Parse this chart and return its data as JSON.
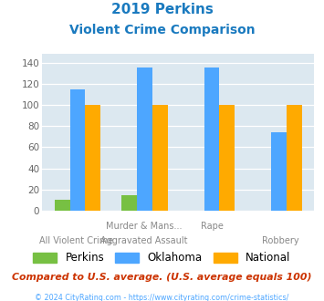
{
  "title_line1": "2019 Perkins",
  "title_line2": "Violent Crime Comparison",
  "title_color": "#1a7abf",
  "perkins": [
    10,
    15,
    0,
    0
  ],
  "oklahoma": [
    115,
    135,
    135,
    74
  ],
  "national": [
    100,
    100,
    100,
    100
  ],
  "perkins_color": "#77c043",
  "oklahoma_color": "#4da6ff",
  "national_color": "#ffaa00",
  "ylim": [
    0,
    148
  ],
  "yticks": [
    0,
    20,
    40,
    60,
    80,
    100,
    120,
    140
  ],
  "plot_bg": "#dce8f0",
  "footer_text": "Compared to U.S. average. (U.S. average equals 100)",
  "footer_color": "#cc3300",
  "copyright_text": "© 2024 CityRating.com - https://www.cityrating.com/crime-statistics/",
  "copyright_color": "#4da6ff",
  "legend_labels": [
    "Perkins",
    "Oklahoma",
    "National"
  ]
}
